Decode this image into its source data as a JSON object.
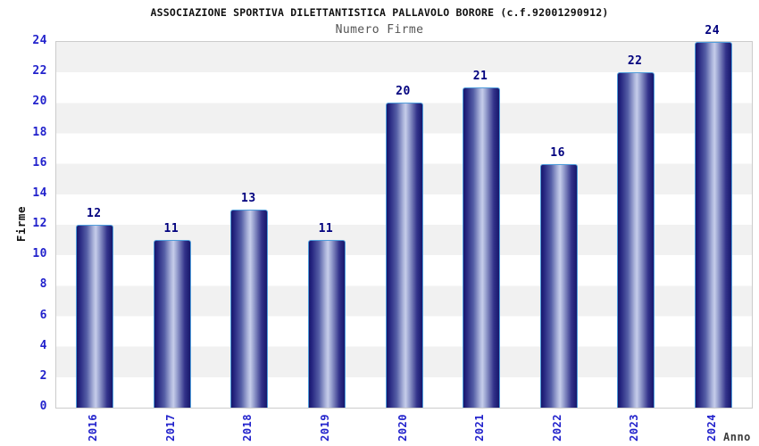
{
  "chart_data": {
    "type": "bar",
    "title": "ASSOCIAZIONE SPORTIVA DILETTANTISTICA PALLAVOLO BORORE (c.f.92001290912)",
    "subtitle": "Numero Firme",
    "xlabel": "Anno",
    "ylabel": "Firme",
    "categories": [
      "2016",
      "2017",
      "2018",
      "2019",
      "2020",
      "2021",
      "2022",
      "2023",
      "2024"
    ],
    "values": [
      12,
      11,
      13,
      11,
      20,
      21,
      16,
      22,
      24
    ],
    "ylim": [
      0,
      24
    ],
    "ytick_step": 2,
    "grid": "horizontal-bands",
    "legend": "none",
    "bar_labels_shown": true
  },
  "colors": {
    "tick_label": "#2222cc",
    "value_label": "#00007e",
    "bar_dark": "#17176b",
    "bar_light": "#c6cdea",
    "bar_border": "#4f9ddb",
    "band_gray": "#f1f1f1",
    "plot_border": "#cccccc",
    "title_text": "#111111",
    "subtitle_text": "#555555",
    "axis_title_text": "#3d3d3d"
  }
}
